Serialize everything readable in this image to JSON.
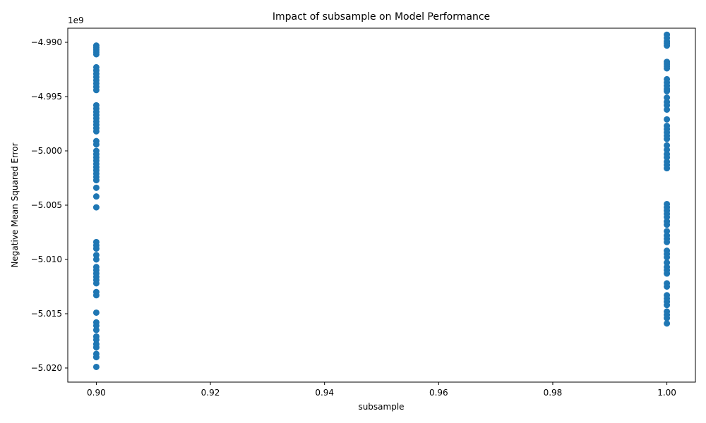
{
  "chart_data": {
    "type": "scatter",
    "title": "Impact of subsample on Model Performance",
    "xlabel": "subsample",
    "ylabel": "Negative Mean Squared Error",
    "y_offset_label": "1e9",
    "xlim": [
      0.895,
      1.005
    ],
    "ylim": [
      -5.0213,
      -4.9887
    ],
    "x_ticks": [
      0.9,
      0.92,
      0.94,
      0.96,
      0.98,
      1.0
    ],
    "x_tick_labels": [
      "0.90",
      "0.92",
      "0.94",
      "0.96",
      "0.98",
      "1.00"
    ],
    "y_ticks": [
      -4.99,
      -4.995,
      -5.0,
      -5.005,
      -5.01,
      -5.015,
      -5.02
    ],
    "y_tick_labels": [
      "−4.990",
      "−4.995",
      "−5.000",
      "−5.005",
      "−5.010",
      "−5.015",
      "−5.020"
    ],
    "grid": false,
    "marker_color": "#1f77b4",
    "series": [
      {
        "x": 0.9,
        "y": [
          -4.9903,
          -4.9905,
          -4.9907,
          -4.9909,
          -4.9911,
          -4.9923,
          -4.9926,
          -4.9929,
          -4.9932,
          -4.9935,
          -4.9938,
          -4.9941,
          -4.9944,
          -4.9958,
          -4.9961,
          -4.9964,
          -4.9967,
          -4.997,
          -4.9973,
          -4.9976,
          -4.9979,
          -4.9982,
          -4.9991,
          -4.9994,
          -5.0,
          -5.0003,
          -5.0006,
          -5.0009,
          -5.0012,
          -5.0015,
          -5.0018,
          -5.0021,
          -5.0024,
          -5.0027,
          -5.0034,
          -5.0042,
          -5.0052,
          -5.0084,
          -5.0087,
          -5.009,
          -5.0096,
          -5.01,
          -5.0107,
          -5.011,
          -5.0113,
          -5.0116,
          -5.0119,
          -5.0122,
          -5.013,
          -5.0133,
          -5.0149,
          -5.0158,
          -5.0161,
          -5.0165,
          -5.0171,
          -5.0174,
          -5.0178,
          -5.0181,
          -5.0187,
          -5.019,
          -5.0199
        ]
      },
      {
        "x": 1.0,
        "y": [
          -4.9893,
          -4.9896,
          -4.9899,
          -4.9901,
          -4.9903,
          -4.9918,
          -4.992,
          -4.9922,
          -4.9924,
          -4.9934,
          -4.9937,
          -4.994,
          -4.9943,
          -4.9945,
          -4.9951,
          -4.9955,
          -4.9958,
          -4.9962,
          -4.9971,
          -4.9977,
          -4.998,
          -4.9983,
          -4.9986,
          -4.9989,
          -4.9995,
          -4.9999,
          -5.0003,
          -5.0006,
          -5.001,
          -5.0013,
          -5.0016,
          -5.0049,
          -5.0052,
          -5.0055,
          -5.0058,
          -5.0061,
          -5.0065,
          -5.0068,
          -5.0074,
          -5.0078,
          -5.0081,
          -5.0084,
          -5.0092,
          -5.0095,
          -5.0098,
          -5.0103,
          -5.0107,
          -5.011,
          -5.0113,
          -5.0122,
          -5.0125,
          -5.0133,
          -5.0136,
          -5.0139,
          -5.0142,
          -5.0148,
          -5.0151,
          -5.0154,
          -5.0159
        ]
      }
    ]
  }
}
